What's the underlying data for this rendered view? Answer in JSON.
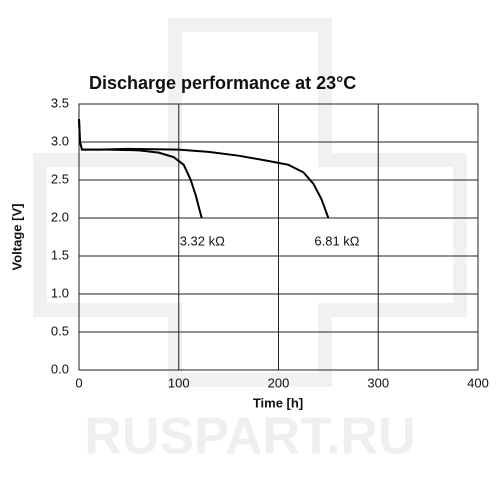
{
  "chart_data": {
    "type": "line",
    "title": "Discharge performance at 23°C",
    "x_label": "Time [h]",
    "y_label": "Voltage [V]",
    "watermark": "RUSPART.RU",
    "xlim": [
      0,
      400
    ],
    "xticks": [
      0,
      100,
      200,
      300,
      400
    ],
    "ylim": [
      0,
      3.5
    ],
    "yticks": [
      {
        "value": 0,
        "label": "0.0"
      },
      0.5,
      {
        "value": 1,
        "label": "1.0"
      },
      1.5,
      {
        "value": 2,
        "label": "2.0"
      },
      2.5,
      {
        "value": 3,
        "label": "3.0"
      },
      3.5
    ],
    "grid": true,
    "series": [
      {
        "name": "3.32 kΩ",
        "color": "#000000",
        "x": [
          0,
          1,
          3,
          10,
          30,
          60,
          80,
          95,
          105,
          112,
          117,
          120,
          123
        ],
        "values": [
          3.3,
          3.0,
          2.9,
          2.9,
          2.9,
          2.89,
          2.86,
          2.8,
          2.7,
          2.5,
          2.3,
          2.15,
          2.0
        ]
      },
      {
        "name": "6.81 kΩ",
        "color": "#000000",
        "x": [
          0,
          1,
          3,
          20,
          50,
          100,
          130,
          160,
          190,
          210,
          225,
          235,
          243,
          250
        ],
        "values": [
          3.3,
          3.0,
          2.9,
          2.9,
          2.91,
          2.9,
          2.87,
          2.82,
          2.75,
          2.7,
          2.6,
          2.45,
          2.25,
          2.0
        ]
      }
    ]
  }
}
